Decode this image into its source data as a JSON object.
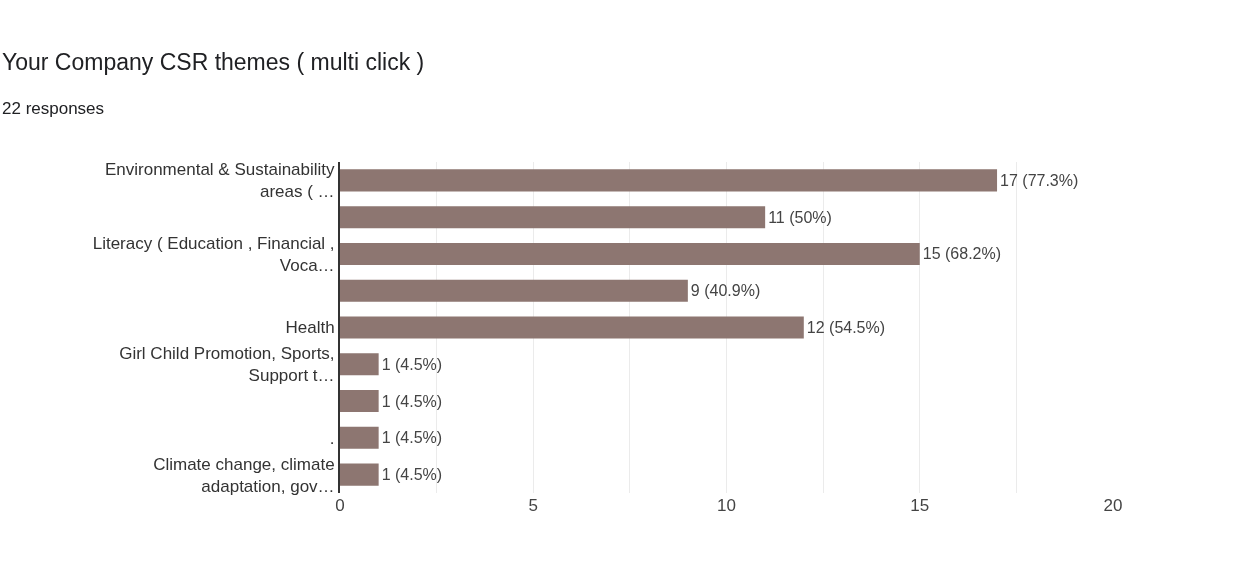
{
  "chart_data": {
    "type": "bar",
    "orientation": "horizontal",
    "title": "Your Company CSR themes ( multi click )",
    "subtitle": "22 responses",
    "categories": [
      "Environmental & Sustainability areas ( …",
      null,
      "Literacy ( Education , Financial , Voca…",
      null,
      "Health",
      "Girl Child Promotion, Sports, Support t…",
      null,
      ".",
      "Climate change, climate adaptation, gov…"
    ],
    "values": [
      17,
      11,
      15,
      9,
      12,
      1,
      1,
      1,
      1
    ],
    "value_labels": [
      "17 (77.3%)",
      "11 (50%)",
      "15 (68.2%)",
      "9 (40.9%)",
      "12 (54.5%)",
      "1 (4.5%)",
      "1 (4.5%)",
      "1 (4.5%)",
      "1 (4.5%)"
    ],
    "color": "#8d7671",
    "xlim": [
      0,
      20
    ],
    "xticks": [
      0,
      {
        "value": 2.5,
        "label": null
      },
      5,
      {
        "value": 7.5,
        "label": null
      },
      10,
      {
        "value": 12.5,
        "label": null
      },
      15,
      {
        "value": 17.5,
        "label": null
      },
      20
    ],
    "grid": "x",
    "legend": false
  }
}
